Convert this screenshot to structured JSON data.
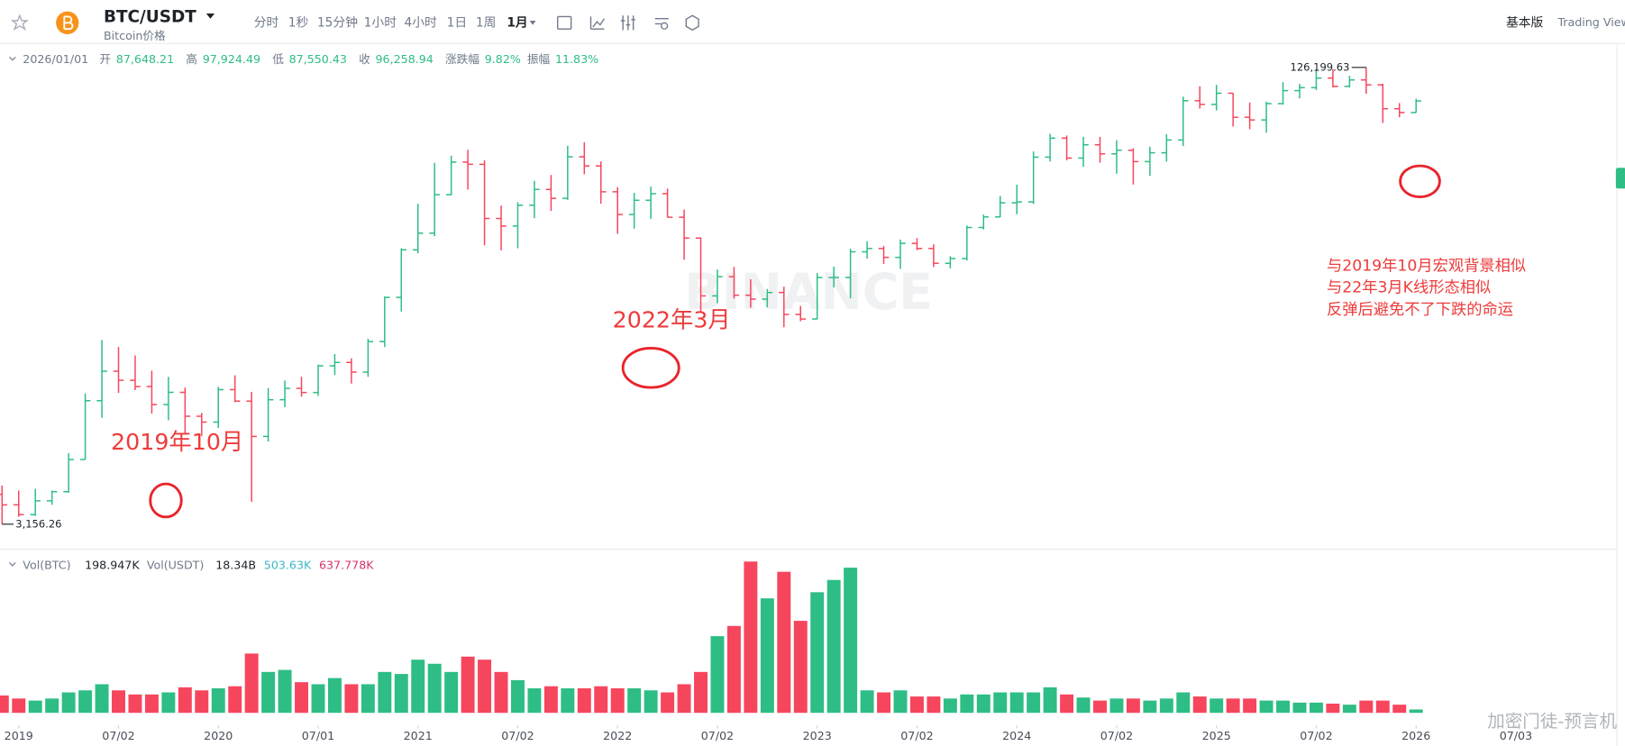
{
  "toolbar": {
    "symbol": "BTC/USDT",
    "subtitle": "Bitcoin价格",
    "timeframes": [
      "分时",
      "1秒",
      "15分钟",
      "1小时",
      "4小时",
      "1日",
      "1周",
      "1月"
    ],
    "mode": "基本版",
    "view": "Trading View"
  },
  "info": {
    "date": "2026/01/01",
    "items": [
      {
        "label": "开",
        "value": "87,648.21"
      },
      {
        "label": "高",
        "value": "97,924.49"
      },
      {
        "label": "低",
        "value": "87,550.43"
      },
      {
        "label": "收",
        "value": "96,258.94"
      },
      {
        "label": "涨跌幅",
        "value": "9.82%"
      },
      {
        "label": "振幅",
        "value": "11.83%"
      }
    ]
  },
  "volume_legend": [
    {
      "text": "Vol(BTC)",
      "color": "#707a8a"
    },
    {
      "text": "198.947K",
      "color": "#1e2329"
    },
    {
      "text": "Vol(USDT)",
      "color": "#707a8a"
    },
    {
      "text": "18.34B",
      "color": "#1e2329"
    },
    {
      "text": "503.63K",
      "color": "#3bb8c8"
    },
    {
      "text": "637.778K",
      "color": "#d6336c"
    }
  ],
  "watermark": "BINANCE",
  "credit": "加密门徒-预言机",
  "chart_data": {
    "type": "ohlc",
    "log": true,
    "up_color": "#2ebd85",
    "down_color": "#f6465d",
    "x": [
      "2018-12",
      "2019-01",
      "2019-02",
      "2019-03",
      "2019-04",
      "2019-05",
      "2019-06",
      "2019-07",
      "2019-08",
      "2019-09",
      "2019-10",
      "2019-11",
      "2019-12",
      "2020-01",
      "2020-02",
      "2020-03",
      "2020-04",
      "2020-05",
      "2020-06",
      "2020-07",
      "2020-08",
      "2020-09",
      "2020-10",
      "2020-11",
      "2020-12",
      "2021-01",
      "2021-02",
      "2021-03",
      "2021-04",
      "2021-05",
      "2021-06",
      "2021-07",
      "2021-08",
      "2021-09",
      "2021-10",
      "2021-11",
      "2021-12",
      "2022-01",
      "2022-02",
      "2022-03",
      "2022-04",
      "2022-05",
      "2022-06",
      "2022-07",
      "2022-08",
      "2022-09",
      "2022-10",
      "2022-11",
      "2022-12",
      "2023-01",
      "2023-02",
      "2023-03",
      "2023-04",
      "2023-05",
      "2023-06",
      "2023-07",
      "2023-08",
      "2023-09",
      "2023-10",
      "2023-11",
      "2023-12",
      "2024-01",
      "2024-02",
      "2024-03",
      "2024-04",
      "2024-05",
      "2024-06",
      "2024-07",
      "2024-08",
      "2024-09",
      "2024-10",
      "2024-11",
      "2024-12",
      "2025-01",
      "2025-02",
      "2025-03",
      "2025-04",
      "2025-05",
      "2025-06",
      "2025-07",
      "2025-08",
      "2025-09",
      "2025-10",
      "2025-11",
      "2025-12",
      "2026-01"
    ],
    "open": [
      4017,
      3689,
      3410,
      3811,
      4103,
      5320,
      8555,
      10855,
      10085,
      9590,
      8294,
      9150,
      7545,
      7196,
      9353,
      8525,
      6410,
      8621,
      9448,
      9138,
      11336,
      11650,
      10776,
      13792,
      19700,
      28923,
      33092,
      45135,
      58741,
      57694,
      37253,
      35045,
      41461,
      47101,
      43824,
      61300,
      56950,
      46216,
      38466,
      43160,
      45510,
      37630,
      31801,
      19942,
      23293,
      20050,
      19423,
      20490,
      17164,
      16542,
      23125,
      23141,
      28465,
      29233,
      27210,
      30472,
      29232,
      25941,
      26962,
      34639,
      37723,
      42283,
      42580,
      61130,
      71280,
      60672,
      67540,
      62772,
      64628,
      58974,
      63327,
      70215,
      96407,
      93576,
      102429,
      84350,
      82548,
      94172,
      104591,
      107135,
      115764,
      108246,
      114048,
      109608,
      90360,
      87648.21
    ],
    "high": [
      4313,
      4140,
      4198,
      4140,
      5600,
      9074,
      13970,
      13200,
      12330,
      10905,
      10370,
      9510,
      7750,
      9575,
      10500,
      9188,
      9468,
      10067,
      10380,
      11444,
      12468,
      12050,
      14100,
      19863,
      29300,
      41950,
      58352,
      61844,
      64854,
      59592,
      41330,
      42448,
      50500,
      52920,
      67000,
      69000,
      59053,
      47990,
      45821,
      48189,
      47444,
      40023,
      31982,
      24668,
      25211,
      22799,
      21085,
      21480,
      18387,
      23960,
      25250,
      29184,
      31000,
      29820,
      31431,
      31804,
      30244,
      27483,
      35198,
      38450,
      44700,
      48969,
      64000,
      73777,
      72797,
      71979,
      71997,
      70079,
      65660,
      66500,
      73620,
      99588,
      108353,
      109588,
      102500,
      95000,
      95758,
      111980,
      110530,
      123218,
      124474,
      117900,
      126199.63,
      110600,
      94600,
      97924.49
    ],
    "low": [
      3156.26,
      3349,
      3373,
      3690,
      4067,
      5316,
      7451,
      9110,
      9320,
      7710,
      7300,
      6515,
      6435,
      6871,
      8450,
      3782,
      6150,
      8117,
      8833,
      8893,
      10525,
      9825,
      10374,
      13195,
      17572,
      28130,
      32296,
      44950,
      47044,
      30000,
      28805,
      29278,
      37332,
      39600,
      43283,
      53256,
      42000,
      32917,
      34322,
      37155,
      37578,
      26700,
      17622,
      18781,
      19520,
      18125,
      18190,
      15476,
      16256,
      16499,
      21351,
      19549,
      26942,
      25811,
      24800,
      28861,
      25166,
      24900,
      26538,
      34097,
      37615,
      38555,
      41884,
      59005,
      59600,
      56552,
      58402,
      53485,
      49000,
      52550,
      58946,
      66835,
      90500,
      89164,
      78258,
      76606,
      74508,
      93346,
      98200,
      105100,
      107350,
      107255,
      102000,
      80600,
      84400,
      87550.43
    ],
    "close": [
      3689,
      3410,
      3811,
      4103,
      5320,
      8555,
      10855,
      10085,
      9590,
      8294,
      9150,
      7545,
      7196,
      9353,
      8525,
      6410,
      8621,
      9448,
      9138,
      11336,
      11650,
      10776,
      13792,
      19700,
      28923,
      33092,
      45135,
      58741,
      57694,
      37253,
      35045,
      41461,
      47101,
      43824,
      61300,
      56950,
      46216,
      38466,
      43160,
      45510,
      37630,
      31801,
      19942,
      23293,
      20050,
      19423,
      20490,
      17164,
      16542,
      23125,
      23141,
      28465,
      29233,
      27210,
      30472,
      29232,
      25941,
      26962,
      34639,
      37723,
      42283,
      42580,
      61130,
      71280,
      60672,
      67540,
      62772,
      64628,
      58974,
      63327,
      70215,
      96407,
      93576,
      102429,
      84350,
      82548,
      94172,
      104591,
      107135,
      115764,
      108246,
      114048,
      109608,
      90360,
      87648,
      96258.94
    ],
    "volume": [
      1020,
      840,
      720,
      840,
      1200,
      1320,
      1680,
      1320,
      1080,
      1080,
      1200,
      1500,
      1320,
      1440,
      1560,
      3480,
      2400,
      2520,
      1800,
      1680,
      2040,
      1680,
      1680,
      2400,
      2280,
      3120,
      2880,
      2400,
      3300,
      3120,
      2400,
      1920,
      1440,
      1560,
      1440,
      1440,
      1560,
      1440,
      1440,
      1320,
      1200,
      1680,
      2400,
      4500,
      5100,
      8880,
      6720,
      8280,
      5400,
      7080,
      7800,
      8520,
      1320,
      1200,
      1320,
      960,
      960,
      840,
      1080,
      1080,
      1200,
      1200,
      1200,
      1500,
      1080,
      900,
      720,
      840,
      840,
      720,
      840,
      1200,
      960,
      840,
      840,
      840,
      720,
      720,
      600,
      600,
      540,
      480,
      720,
      720,
      480,
      198.947
    ],
    "ylim": [
      2580,
      155600
    ],
    "vol_ylim": [
      0,
      9000
    ],
    "extreme_labels": {
      "high": "126,199.63",
      "low": "3,156.26"
    },
    "xticks": [
      {
        "value": "2019-01",
        "label": "2019"
      },
      {
        "value": "2019-07",
        "label": "07/02"
      },
      {
        "value": "2020-01",
        "label": "2020"
      },
      {
        "value": "2020-07",
        "label": "07/01"
      },
      {
        "value": "2021-01",
        "label": "2021"
      },
      {
        "value": "2021-07",
        "label": "07/02"
      },
      {
        "value": "2022-01",
        "label": "2022"
      },
      {
        "value": "2022-07",
        "label": "07/02"
      },
      {
        "value": "2023-01",
        "label": "2023"
      },
      {
        "value": "2023-07",
        "label": "07/02"
      },
      {
        "value": "2024-01",
        "label": "2024"
      },
      {
        "value": "2024-07",
        "label": "07/02"
      },
      {
        "value": "2025-01",
        "label": "2025"
      },
      {
        "value": "2025-07",
        "label": "07/02"
      },
      {
        "value": "2026-01",
        "label": "2026"
      },
      {
        "value": "2026-07",
        "label": "07/03"
      }
    ],
    "annotations": [
      "2019年10月",
      "2022年3月",
      "与2019年10月宏观背景相似",
      "与22年3月K线形态相似",
      "反弹后避免不了下跌的命运"
    ]
  }
}
